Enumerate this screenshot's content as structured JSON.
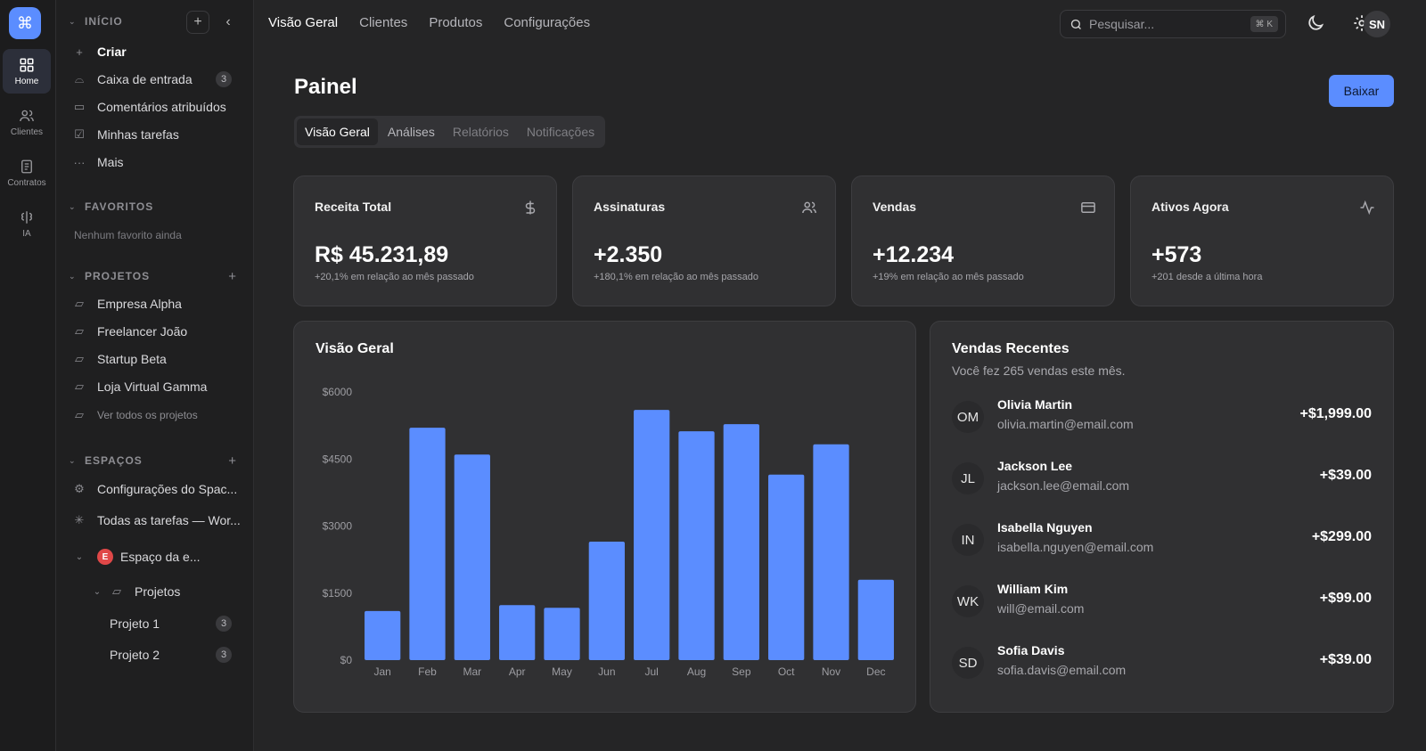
{
  "rail": {
    "logo_glyph": "⌘",
    "items": [
      {
        "label": "Home",
        "icon": "grid-icon"
      },
      {
        "label": "Clientes",
        "icon": "users-icon"
      },
      {
        "label": "Contratos",
        "icon": "document-icon"
      },
      {
        "label": "IA",
        "icon": "ai-icon"
      }
    ]
  },
  "sidebar": {
    "inicio": {
      "header": "INÍCIO",
      "items": [
        {
          "label": "Criar"
        },
        {
          "label": "Caixa de entrada",
          "count": "3"
        },
        {
          "label": "Comentários atribuídos"
        },
        {
          "label": "Minhas tarefas"
        },
        {
          "label": "Mais"
        }
      ]
    },
    "favoritos": {
      "header": "FAVORITOS",
      "empty": "Nenhum favorito ainda"
    },
    "projetos": {
      "header": "PROJETOS",
      "items": [
        {
          "label": "Empresa Alpha"
        },
        {
          "label": "Freelancer João"
        },
        {
          "label": "Startup Beta"
        },
        {
          "label": "Loja Virtual Gamma"
        }
      ],
      "view_all": "Ver todos os projetos"
    },
    "espacos": {
      "header": "ESPAÇOS",
      "items": [
        {
          "label": "Configurações do Spac..."
        },
        {
          "label": "Todas as tarefas — Wor..."
        }
      ],
      "space": {
        "badge": "E",
        "label": "Espaço da e..."
      },
      "folder": "Projetos",
      "children": [
        {
          "label": "Projeto 1",
          "count": "3"
        },
        {
          "label": "Projeto 2",
          "count": "3"
        }
      ]
    }
  },
  "topbar": {
    "nav": [
      "Visão Geral",
      "Clientes",
      "Produtos",
      "Configurações"
    ],
    "search_placeholder": "Pesquisar...",
    "search_shortcut": "⌘ K",
    "avatar": "SN"
  },
  "page": {
    "title": "Painel",
    "download_label": "Baixar",
    "tabs": [
      "Visão Geral",
      "Análises",
      "Relatórios",
      "Notificações"
    ]
  },
  "kpis": [
    {
      "title": "Receita Total",
      "value": "R$ 45.231,89",
      "sub": "+20,1% em relação ao mês passado",
      "icon": "dollar-icon"
    },
    {
      "title": "Assinaturas",
      "value": "+2.350",
      "sub": "+180,1% em relação ao mês passado",
      "icon": "users-icon"
    },
    {
      "title": "Vendas",
      "value": "+12.234",
      "sub": "+19% em relação ao mês passado",
      "icon": "credit-card-icon"
    },
    {
      "title": "Ativos Agora",
      "value": "+573",
      "sub": "+201 desde a última hora",
      "icon": "activity-icon"
    }
  ],
  "overview": {
    "title": "Visão Geral"
  },
  "chart_data": {
    "type": "bar",
    "title": "Visão Geral",
    "categories": [
      "Jan",
      "Feb",
      "Mar",
      "Apr",
      "May",
      "Jun",
      "Jul",
      "Aug",
      "Sep",
      "Oct",
      "Nov",
      "Dec"
    ],
    "values": [
      1100,
      5200,
      4600,
      1230,
      1170,
      2650,
      5600,
      5120,
      5280,
      4150,
      4830,
      1800
    ],
    "ylim": [
      0,
      6000
    ],
    "yticks": [
      "$0",
      "$1500",
      "$3000",
      "$4500",
      "$6000"
    ],
    "ytick_values": [
      0,
      1500,
      3000,
      4500,
      6000
    ],
    "color": "#5b8dff",
    "grid": false
  },
  "recent_sales": {
    "title": "Vendas Recentes",
    "subtitle": "Você fez 265 vendas este mês.",
    "items": [
      {
        "initials": "OM",
        "name": "Olivia Martin",
        "email": "olivia.martin@email.com",
        "amount": "+$1,999.00"
      },
      {
        "initials": "JL",
        "name": "Jackson Lee",
        "email": "jackson.lee@email.com",
        "amount": "+$39.00"
      },
      {
        "initials": "IN",
        "name": "Isabella Nguyen",
        "email": "isabella.nguyen@email.com",
        "amount": "+$299.00"
      },
      {
        "initials": "WK",
        "name": "William Kim",
        "email": "will@email.com",
        "amount": "+$99.00"
      },
      {
        "initials": "SD",
        "name": "Sofia Davis",
        "email": "sofia.davis@email.com",
        "amount": "+$39.00"
      }
    ]
  }
}
